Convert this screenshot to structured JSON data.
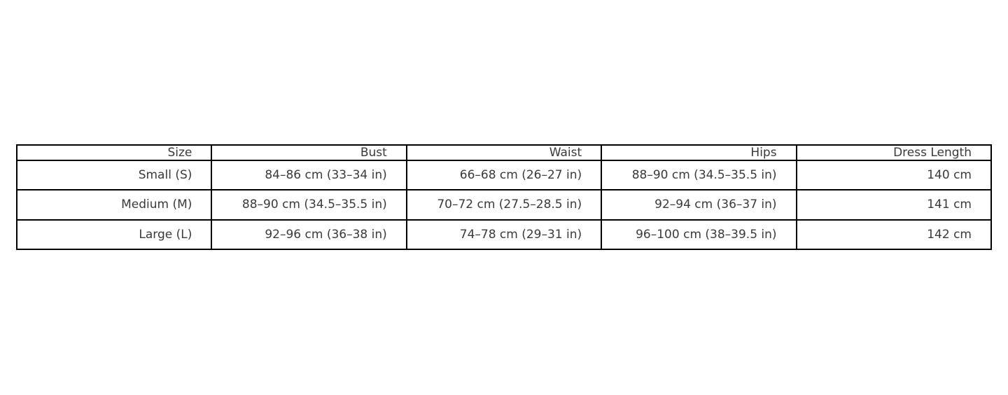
{
  "page": {
    "background_color": "#ffffff",
    "text_color": "#3a3a3a",
    "border_color": "#000000"
  },
  "chart_data": {
    "type": "table",
    "title": "",
    "columns": [
      "Size",
      "Bust",
      "Waist",
      "Hips",
      "Dress Length"
    ],
    "rows": [
      [
        "Small (S)",
        "84–86 cm (33–34 in)",
        "66–68 cm (26–27 in)",
        "88–90 cm (34.5–35.5 in)",
        "140 cm"
      ],
      [
        "Medium (M)",
        "88–90 cm (34.5–35.5 in)",
        "70–72 cm (27.5–28.5 in)",
        "92–94 cm (36–37 in)",
        "141 cm"
      ],
      [
        "Large (L)",
        "92–96 cm (36–38 in)",
        "74–78 cm (29–31 in)",
        "96–100 cm (38–39.5 in)",
        "142 cm"
      ]
    ],
    "layout": {
      "cell_text_align": "right",
      "grid": true,
      "header_bold": false
    }
  }
}
